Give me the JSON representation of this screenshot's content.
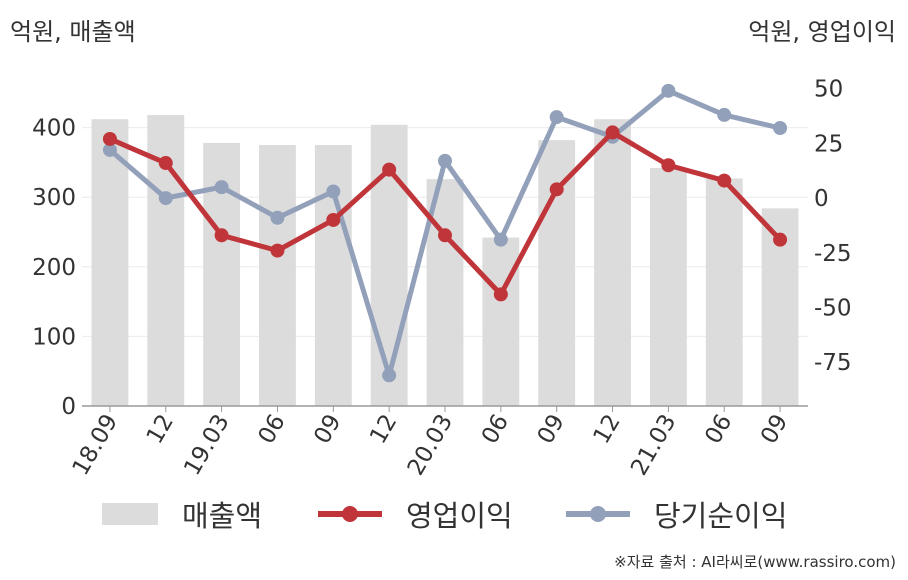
{
  "units": {
    "left": "억원, 매출액",
    "right": "억원, 영업이익"
  },
  "source": "※자료 출처 : AI라씨로(www.rassiro.com)",
  "colors": {
    "revenue": "#dcdcdc",
    "operating": "#c0353a",
    "net": "#93a0ba",
    "axis": "#999999",
    "grid": "#ebebeb"
  },
  "legend": {
    "revenue": "매출액",
    "operating": "영업이익",
    "net": "당기순이익"
  },
  "chart_data": {
    "type": "bar+line",
    "categories": [
      "18.09",
      "12",
      "19.03",
      "06",
      "09",
      "12",
      "20.03",
      "06",
      "09",
      "12",
      "21.03",
      "06",
      "09"
    ],
    "y_left": {
      "ticks": [
        "0",
        "100",
        "200",
        "300",
        "400"
      ],
      "range": [
        0,
        500
      ]
    },
    "y_right": {
      "ticks": [
        "-75",
        "-50",
        "-25",
        "0",
        "25",
        "50"
      ],
      "range": [
        -95,
        64
      ]
    },
    "grid": true,
    "legend_position": "bottom",
    "series": [
      {
        "name": "매출액",
        "type": "bar",
        "axis": "left",
        "values": [
          412,
          418,
          378,
          375,
          375,
          404,
          326,
          242,
          382,
          412,
          342,
          327,
          284
        ]
      },
      {
        "name": "영업이익",
        "type": "line",
        "axis": "right",
        "values": [
          27,
          16,
          -17,
          -24,
          -10,
          13,
          -17,
          -44,
          4,
          30,
          15,
          8,
          -19
        ]
      },
      {
        "name": "당기순이익",
        "type": "line",
        "axis": "right",
        "values": [
          22,
          0,
          5,
          -9,
          3,
          -81,
          17,
          -19,
          37,
          28,
          49,
          38,
          32
        ]
      }
    ]
  }
}
